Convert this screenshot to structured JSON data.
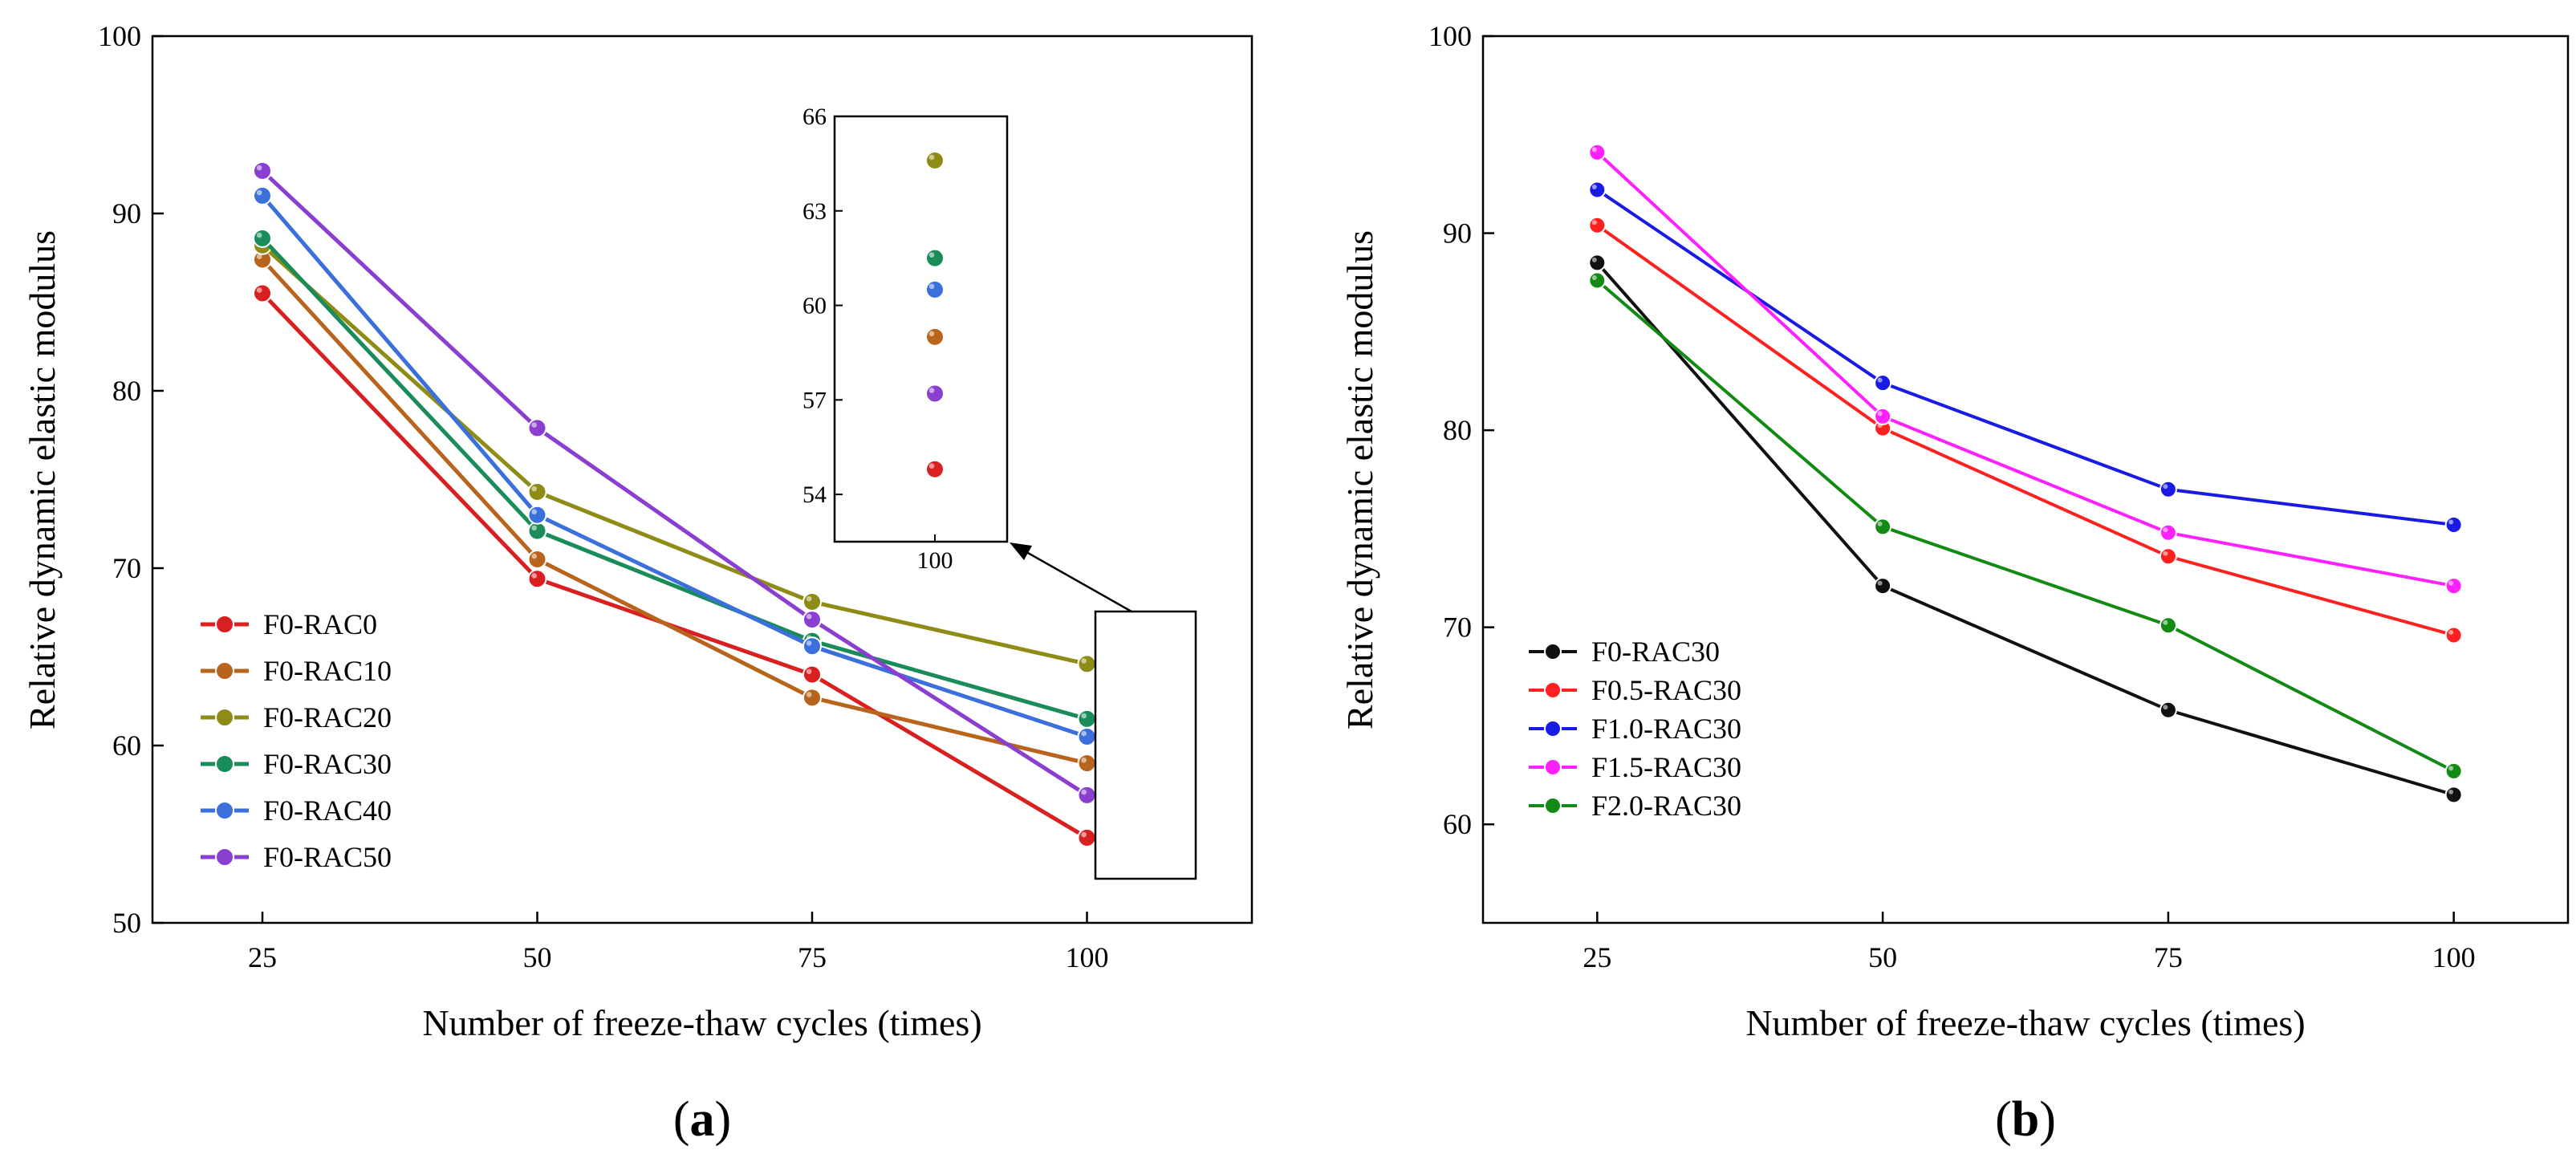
{
  "chart_data": [
    {
      "type": "line",
      "panel_label": "(a)",
      "panel_label_parts": [
        "(",
        "a",
        ")"
      ],
      "title": "",
      "xlabel": "Number of freeze-thaw cycles (times)",
      "ylabel": "Relative dynamic elastic modulus",
      "x": [
        25,
        50,
        75,
        100
      ],
      "x_tick_labels": [
        "25",
        "50",
        "75",
        "100"
      ],
      "xlim": [
        15,
        115
      ],
      "ylim": [
        50,
        100
      ],
      "y_ticks": [
        50,
        60,
        70,
        80,
        90,
        100
      ],
      "y_tick_labels": [
        "50",
        "60",
        "70",
        "80",
        "90",
        "100"
      ],
      "grid": false,
      "legend_position": "bottom-left",
      "series": [
        {
          "name": "F0-RAC0",
          "color": "#d92020",
          "values": [
            85.5,
            69.4,
            64.0,
            54.8
          ]
        },
        {
          "name": "F0-RAC10",
          "color": "#b8641c",
          "values": [
            87.4,
            70.5,
            62.7,
            59.0
          ]
        },
        {
          "name": "F0-RAC20",
          "color": "#8e8c16",
          "values": [
            88.2,
            74.3,
            68.1,
            64.6
          ]
        },
        {
          "name": "F0-RAC30",
          "color": "#1a8c5a",
          "values": [
            88.6,
            72.1,
            65.9,
            61.5
          ]
        },
        {
          "name": "F0-RAC40",
          "color": "#3a6fdc",
          "values": [
            91.0,
            73.0,
            65.6,
            60.5
          ]
        },
        {
          "name": "F0-RAC50",
          "color": "#8a3fd1",
          "values": [
            92.4,
            77.9,
            67.1,
            57.2
          ]
        }
      ],
      "inset": {
        "description": "zoom of x = 100",
        "x_tick_labels": [
          "100"
        ],
        "ylim": [
          52.5,
          66
        ],
        "y_ticks": [
          54,
          57,
          60,
          63,
          66
        ],
        "y_tick_labels": [
          "54",
          "57",
          "60",
          "63",
          "66"
        ]
      }
    },
    {
      "type": "line",
      "panel_label": "(b)",
      "panel_label_parts": [
        "(",
        "b",
        ")"
      ],
      "title": "",
      "xlabel": "Number of freeze-thaw cycles (times)",
      "ylabel": "Relative dynamic elastic modulus",
      "x": [
        25,
        50,
        75,
        100
      ],
      "x_tick_labels": [
        "25",
        "50",
        "75",
        "100"
      ],
      "xlim": [
        15,
        110
      ],
      "ylim": [
        55,
        100
      ],
      "y_ticks": [
        60,
        70,
        80,
        90,
        100
      ],
      "y_tick_labels": [
        "60",
        "70",
        "80",
        "90",
        "100"
      ],
      "grid": false,
      "legend_position": "bottom-left",
      "series": [
        {
          "name": "F0-RAC30",
          "color": "#111111",
          "values": [
            88.5,
            72.1,
            65.8,
            61.5
          ]
        },
        {
          "name": "F0.5-RAC30",
          "color": "#ff2020",
          "values": [
            90.4,
            80.1,
            73.6,
            69.6
          ]
        },
        {
          "name": "F1.0-RAC30",
          "color": "#1a1ae6",
          "values": [
            92.2,
            82.4,
            77.0,
            75.2
          ]
        },
        {
          "name": "F1.5-RAC30",
          "color": "#ff20ff",
          "values": [
            94.1,
            80.7,
            74.8,
            72.1
          ]
        },
        {
          "name": "F2.0-RAC30",
          "color": "#138a13",
          "values": [
            87.6,
            75.1,
            70.1,
            62.7
          ]
        }
      ]
    }
  ]
}
